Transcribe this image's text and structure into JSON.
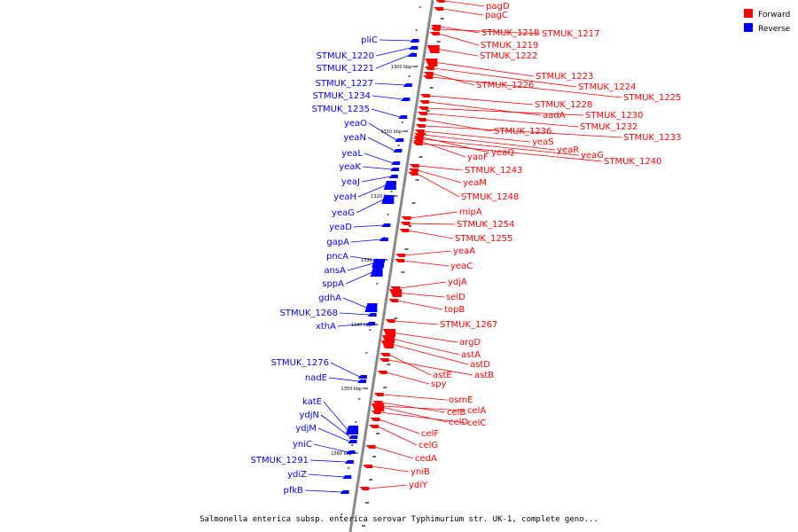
{
  "caption": "Salmonella enterica subsp. enterica serovar Typhimurium str. UK-1, complete geno...",
  "legend": [
    {
      "label": "Forward",
      "color": "#ff0000"
    },
    {
      "label": "Reverse",
      "color": "#0000ff"
    }
  ],
  "colors": {
    "forward": "#ff0000",
    "reverse": "#0000ff",
    "axis": "#888888"
  },
  "kbp_marks": [
    "1300 kbp",
    "1310 kbp",
    "1320 kbp",
    "1330 kbp",
    "1340 kbp",
    "1350 kbp",
    "1360 kbp"
  ],
  "reverse_genes": [
    "pliC",
    "STMUK_1220",
    "STMUK_1221",
    "STMUK_1227",
    "STMUK_1234",
    "STMUK_1235",
    "yeaO",
    "yeaN",
    "yeaL",
    "yeaK",
    "yeaJ",
    "yeaH",
    "yeaG",
    "yeaD",
    "gapA",
    "pncA",
    "ansA",
    "sppA",
    "gdhA",
    "STMUK_1268",
    "xthA",
    "STMUK_1276",
    "nadE",
    "katE",
    "ydjN",
    "ydjM",
    "yniC",
    "STMUK_1291",
    "ydiZ",
    "pfkB"
  ],
  "forward_genes": [
    "pagD",
    "pagC",
    "STMUK_1218",
    "STMUK_1217",
    "STMUK_1219",
    "STMUK_1222",
    "STMUK_1223",
    "STMUK_1224",
    "STMUK_1226",
    "STMUK_1225",
    "STMUK_1228",
    "aadA",
    "STMUK_1230",
    "STMUK_1232",
    "STMUK_1236",
    "STMUK_1233",
    "yeaS",
    "yeaR",
    "yeaQ",
    "yeaG",
    "yaoF",
    "STMUK_1240",
    "STMUK_1243",
    "yeaM",
    "STMUK_1248",
    "mipA",
    "STMUK_1254",
    "STMUK_1255",
    "yeaA",
    "yeaC",
    "ydjA",
    "selD",
    "topB",
    "STMUK_1267",
    "argD",
    "astA",
    "astD",
    "astE",
    "astB",
    "spy",
    "osmE",
    "celB",
    "celA",
    "celD",
    "celC",
    "celF",
    "celG",
    "cedA",
    "yniB",
    "ydiY"
  ]
}
